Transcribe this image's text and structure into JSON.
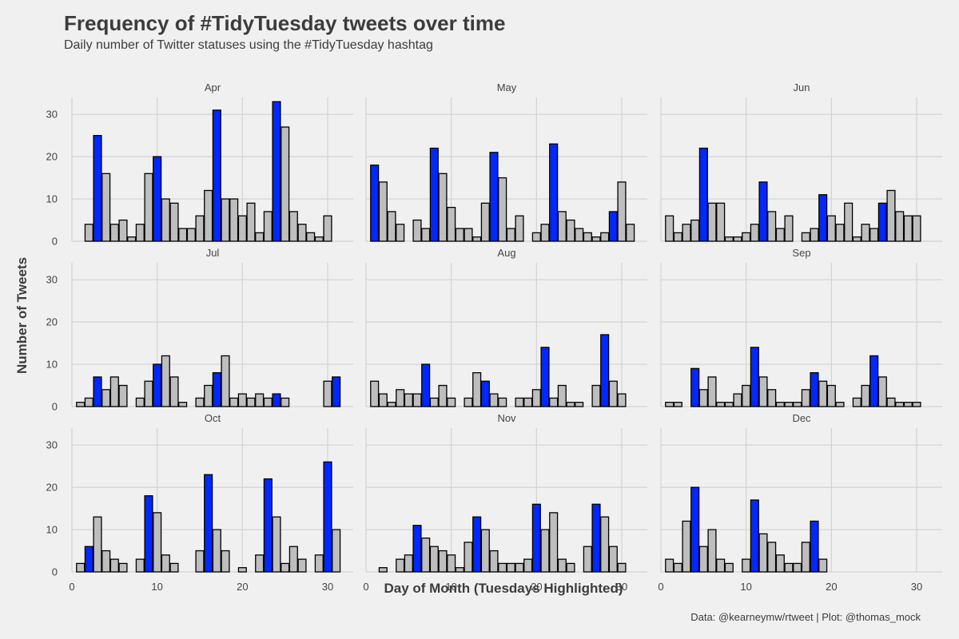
{
  "chart_data": {
    "type": "bar",
    "title": "Frequency of #TidyTuesday tweets over time",
    "subtitle": "Daily number of Twitter statuses using the #TidyTuesday hashtag",
    "xlabel": "Day of Month (Tuesdays Highlighted)",
    "ylabel": "Number of Tweets",
    "caption": "Data: @kearneymw/rtweet | Plot: @thomas_mock",
    "xlim": [
      0,
      33
    ],
    "ylim": [
      0,
      34
    ],
    "x_ticks": [
      0,
      10,
      20,
      30
    ],
    "y_ticks": [
      0,
      10,
      20,
      30
    ],
    "grid": true,
    "colors": {
      "tuesday": "#0028ff",
      "other": "#bebebe",
      "outline": "#000000",
      "grid": "#d2d2d2",
      "background": "#f0f0f0"
    },
    "facets": [
      {
        "month": "Apr",
        "tuesdays": [
          3,
          10,
          17,
          24
        ],
        "days": [
          2,
          3,
          4,
          5,
          6,
          7,
          8,
          9,
          10,
          11,
          12,
          13,
          14,
          15,
          16,
          17,
          18,
          19,
          20,
          21,
          22,
          23,
          24,
          25,
          26,
          27,
          28,
          29,
          30
        ],
        "values": [
          4,
          25,
          16,
          4,
          5,
          1,
          4,
          16,
          20,
          10,
          9,
          3,
          3,
          6,
          12,
          31,
          10,
          10,
          6,
          9,
          2,
          7,
          33,
          27,
          7,
          4,
          2,
          1,
          6
        ]
      },
      {
        "month": "May",
        "tuesdays": [
          1,
          8,
          15,
          22,
          29
        ],
        "days": [
          1,
          2,
          3,
          4,
          6,
          7,
          8,
          9,
          10,
          11,
          12,
          13,
          14,
          15,
          16,
          17,
          18,
          20,
          21,
          22,
          23,
          24,
          25,
          26,
          27,
          28,
          29,
          30,
          31
        ],
        "values": [
          18,
          14,
          7,
          4,
          5,
          3,
          22,
          16,
          8,
          3,
          3,
          1,
          9,
          21,
          15,
          3,
          6,
          2,
          4,
          23,
          7,
          5,
          3,
          2,
          1,
          2,
          7,
          14,
          4
        ]
      },
      {
        "month": "Jun",
        "tuesdays": [
          5,
          12,
          19,
          26
        ],
        "days": [
          1,
          2,
          3,
          4,
          5,
          6,
          7,
          8,
          9,
          10,
          11,
          12,
          13,
          14,
          15,
          17,
          18,
          19,
          20,
          21,
          22,
          23,
          24,
          25,
          26,
          27,
          28,
          29,
          30
        ],
        "values": [
          6,
          2,
          4,
          5,
          22,
          9,
          9,
          1,
          1,
          2,
          4,
          14,
          7,
          3,
          6,
          2,
          3,
          11,
          6,
          4,
          9,
          1,
          4,
          3,
          9,
          12,
          7,
          6,
          6
        ]
      },
      {
        "month": "Jul",
        "tuesdays": [
          3,
          10,
          17,
          24,
          31
        ],
        "days": [
          1,
          2,
          3,
          4,
          5,
          6,
          8,
          9,
          10,
          11,
          12,
          13,
          15,
          16,
          17,
          18,
          19,
          20,
          21,
          22,
          23,
          24,
          25,
          30,
          31
        ],
        "values": [
          1,
          2,
          7,
          4,
          7,
          5,
          2,
          6,
          10,
          12,
          7,
          1,
          2,
          5,
          8,
          12,
          2,
          3,
          2,
          3,
          2,
          3,
          2,
          6,
          7
        ]
      },
      {
        "month": "Aug",
        "tuesdays": [
          7,
          14,
          21,
          28
        ],
        "days": [
          1,
          2,
          3,
          4,
          5,
          6,
          7,
          8,
          9,
          10,
          12,
          13,
          14,
          15,
          16,
          18,
          19,
          20,
          21,
          22,
          23,
          24,
          25,
          27,
          28,
          29,
          30
        ],
        "values": [
          6,
          3,
          1,
          4,
          3,
          3,
          10,
          2,
          5,
          2,
          2,
          8,
          6,
          3,
          2,
          2,
          2,
          4,
          14,
          2,
          5,
          1,
          1,
          5,
          17,
          6,
          3
        ]
      },
      {
        "month": "Sep",
        "tuesdays": [
          4,
          11,
          18,
          25
        ],
        "days": [
          1,
          2,
          4,
          5,
          6,
          7,
          8,
          9,
          10,
          11,
          12,
          13,
          14,
          15,
          16,
          17,
          18,
          19,
          20,
          21,
          23,
          24,
          25,
          26,
          27,
          28,
          29,
          30
        ],
        "values": [
          1,
          1,
          9,
          4,
          7,
          1,
          1,
          3,
          5,
          14,
          7,
          4,
          1,
          1,
          1,
          4,
          8,
          6,
          5,
          1,
          2,
          5,
          12,
          7,
          2,
          1,
          1,
          1
        ]
      },
      {
        "month": "Oct",
        "tuesdays": [
          2,
          9,
          16,
          23,
          30
        ],
        "days": [
          1,
          2,
          3,
          4,
          5,
          6,
          8,
          9,
          10,
          11,
          12,
          15,
          16,
          17,
          18,
          20,
          22,
          23,
          24,
          25,
          26,
          27,
          29,
          30,
          31
        ],
        "values": [
          2,
          6,
          13,
          5,
          3,
          2,
          3,
          18,
          14,
          4,
          2,
          5,
          23,
          10,
          5,
          1,
          4,
          22,
          13,
          2,
          6,
          3,
          4,
          26,
          10
        ]
      },
      {
        "month": "Nov",
        "tuesdays": [
          6,
          13,
          20,
          27
        ],
        "days": [
          2,
          4,
          5,
          6,
          7,
          8,
          9,
          10,
          11,
          12,
          13,
          14,
          15,
          16,
          17,
          18,
          19,
          20,
          21,
          22,
          23,
          24,
          26,
          27,
          28,
          29,
          30
        ],
        "values": [
          1,
          3,
          4,
          11,
          8,
          6,
          5,
          4,
          1,
          7,
          13,
          10,
          5,
          2,
          2,
          2,
          3,
          16,
          10,
          14,
          3,
          2,
          6,
          16,
          13,
          6,
          2
        ]
      },
      {
        "month": "Dec",
        "tuesdays": [
          4,
          11,
          18
        ],
        "days": [
          1,
          2,
          3,
          4,
          5,
          6,
          7,
          8,
          10,
          11,
          12,
          13,
          14,
          15,
          16,
          17,
          18,
          19
        ],
        "values": [
          3,
          2,
          12,
          20,
          6,
          10,
          3,
          2,
          3,
          17,
          9,
          7,
          4,
          2,
          2,
          7,
          12,
          3
        ]
      }
    ]
  }
}
